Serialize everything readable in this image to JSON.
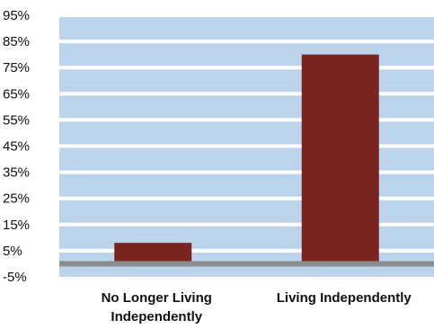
{
  "chart_data": {
    "type": "bar",
    "title": "",
    "xlabel": "",
    "ylabel": "",
    "categories": [
      [
        "No Longer Living",
        "Independently"
      ],
      [
        "Living Independently"
      ]
    ],
    "values": [
      8,
      80
    ],
    "ylim": [
      -5,
      95
    ],
    "y_ticks": [
      "95%",
      "85%",
      "75%",
      "65%",
      "55%",
      "45%",
      "35%",
      "25%",
      "15%",
      "5%",
      "-5%"
    ],
    "y_tick_values": [
      95,
      85,
      75,
      65,
      55,
      45,
      35,
      25,
      15,
      5,
      -5
    ],
    "grid": true,
    "legend": "none",
    "colors": {
      "bar": "#7a2422",
      "plot_background": "#bcd3ec",
      "gridline": "#ffffff",
      "baseline": "#8c8c8c"
    }
  }
}
